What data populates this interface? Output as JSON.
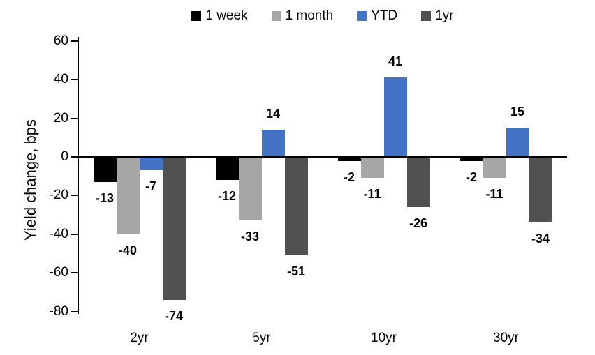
{
  "chart_data": {
    "type": "bar",
    "title": "",
    "xlabel": "",
    "ylabel": "Yield change, bps",
    "categories": [
      "2yr",
      "5yr",
      "10yr",
      "30yr"
    ],
    "series": [
      {
        "name": "1 week",
        "color": "#000000",
        "values": [
          -13,
          -12,
          -2,
          -2
        ]
      },
      {
        "name": "1 month",
        "color": "#A6A6A6",
        "values": [
          -40,
          -33,
          -11,
          -11
        ]
      },
      {
        "name": "YTD",
        "color": "#4472C4",
        "values": [
          -7,
          14,
          41,
          15
        ]
      },
      {
        "name": "1yr",
        "color": "#515151",
        "values": [
          -74,
          -51,
          -26,
          -34
        ]
      }
    ],
    "ylim": [
      -80,
      60
    ],
    "yticks": [
      60,
      40,
      20,
      0,
      -20,
      -40,
      -60,
      -80
    ],
    "grid": false,
    "legend_position": "top",
    "value_labels": true,
    "background_color": "#ffffff",
    "axis_color": "#000000"
  }
}
